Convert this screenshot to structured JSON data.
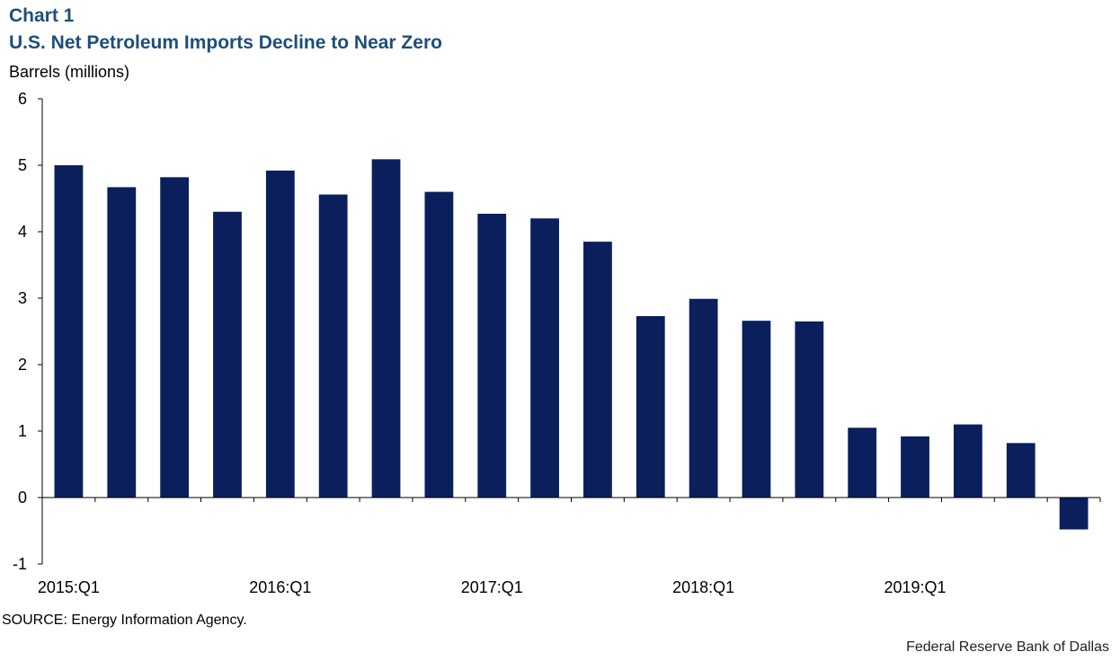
{
  "header": {
    "chart_number": "Chart 1",
    "title": "U.S. Net Petroleum Imports Decline to Near Zero"
  },
  "footer": {
    "source": "SOURCE: Energy Information Agency.",
    "credit": "Federal Reserve Bank of Dallas"
  },
  "colors": {
    "bar": "#0a1f5c",
    "axis": "#000000"
  },
  "chart_data": {
    "type": "bar",
    "title": "U.S. Net Petroleum Imports Decline to Near Zero",
    "xlabel": "",
    "ylabel": "Barrels (millions)",
    "ylim": [
      -1,
      6
    ],
    "yticks": [
      -1,
      0,
      1,
      2,
      3,
      4,
      5,
      6
    ],
    "grid": false,
    "categories": [
      "2015:Q1",
      "2015:Q2",
      "2015:Q3",
      "2015:Q4",
      "2016:Q1",
      "2016:Q2",
      "2016:Q3",
      "2016:Q4",
      "2017:Q1",
      "2017:Q2",
      "2017:Q3",
      "2017:Q4",
      "2018:Q1",
      "2018:Q2",
      "2018:Q3",
      "2018:Q4",
      "2019:Q1",
      "2019:Q2",
      "2019:Q3",
      "2019:Q4"
    ],
    "x_tick_labels": [
      "2015:Q1",
      "2016:Q1",
      "2017:Q1",
      "2018:Q1",
      "2019:Q1"
    ],
    "values": [
      5.0,
      4.67,
      4.82,
      4.3,
      4.92,
      4.56,
      5.09,
      4.6,
      4.27,
      4.2,
      3.85,
      2.73,
      2.99,
      2.66,
      2.65,
      1.05,
      0.92,
      1.1,
      0.82,
      -0.48
    ]
  }
}
